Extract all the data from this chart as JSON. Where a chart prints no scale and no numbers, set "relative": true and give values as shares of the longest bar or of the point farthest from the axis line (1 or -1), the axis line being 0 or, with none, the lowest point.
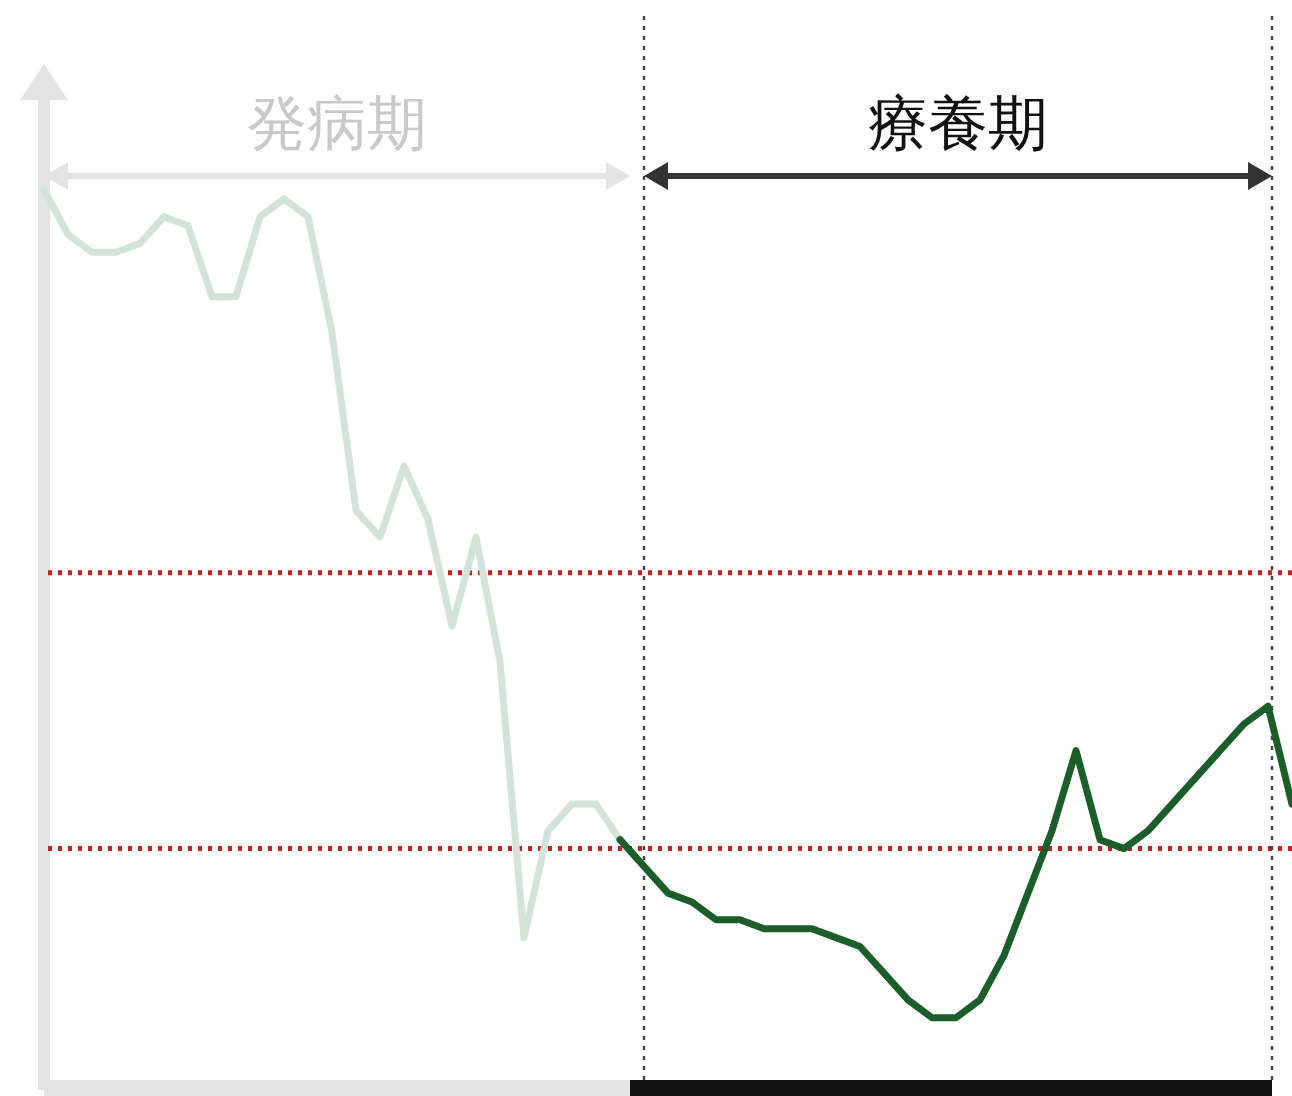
{
  "chart_data": {
    "type": "line",
    "relative": true,
    "categories": [
      null,
      null,
      null,
      null,
      null,
      null,
      null,
      null,
      null,
      null,
      null,
      null,
      null,
      null,
      null,
      null,
      null,
      null,
      null,
      null,
      null,
      null,
      null,
      null,
      null,
      null,
      null,
      null,
      null,
      null,
      null,
      null,
      null,
      null,
      null,
      null,
      null,
      null,
      null,
      null,
      null,
      null,
      null,
      null,
      null,
      null,
      null,
      null,
      null,
      null,
      null,
      null,
      null
    ],
    "series": [
      {
        "color": "#d3e3d9",
        "values": [
          1.0,
          0.95,
          0.93,
          0.93,
          0.94,
          0.97,
          0.96,
          0.88,
          0.88,
          0.97,
          0.99,
          0.97,
          0.84,
          0.64,
          0.61,
          0.69,
          0.63,
          0.51,
          0.61,
          0.47,
          0.16,
          0.28,
          0.31,
          0.31,
          0.27,
          null,
          null,
          null,
          null,
          null,
          null,
          null,
          null,
          null,
          null,
          null,
          null,
          null,
          null,
          null,
          null,
          null,
          null,
          null,
          null,
          null,
          null,
          null,
          null,
          null,
          null,
          null,
          null
        ]
      },
      {
        "color": "#1b5e2a",
        "values": [
          null,
          null,
          null,
          null,
          null,
          null,
          null,
          null,
          null,
          null,
          null,
          null,
          null,
          null,
          null,
          null,
          null,
          null,
          null,
          null,
          null,
          null,
          null,
          null,
          0.27,
          0.24,
          0.21,
          0.2,
          0.18,
          0.18,
          0.17,
          0.17,
          0.17,
          0.16,
          0.15,
          0.12,
          0.09,
          0.07,
          0.07,
          0.09,
          0.14,
          0.21,
          0.28,
          0.37,
          0.27,
          0.26,
          0.28,
          0.31,
          0.34,
          0.37,
          0.4,
          0.42,
          0.31
        ]
      }
    ],
    "ref_lines": [
      {
        "axis": "y",
        "value": 0.57,
        "color": "#cc1f1f",
        "line_style": "dotted"
      },
      {
        "axis": "y",
        "value": 0.26,
        "color": "#cc1f1f",
        "line_style": "dotted"
      }
    ],
    "annotations": [
      "発病期",
      "療養期"
    ]
  }
}
